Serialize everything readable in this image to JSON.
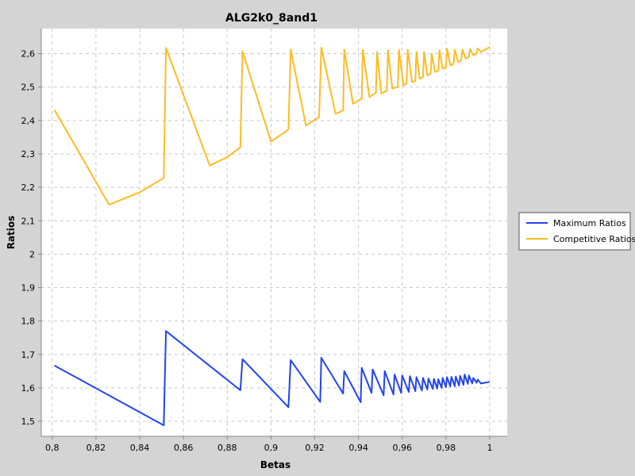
{
  "chart_data": {
    "type": "line",
    "title": "ALG2k0_8and1",
    "xlabel": "Betas",
    "ylabel": "Ratios",
    "xlim": [
      0.795,
      1.008
    ],
    "ylim": [
      1.455,
      2.675
    ],
    "x_ticks": [
      "0,8",
      "0,82",
      "0,84",
      "0,86",
      "0,88",
      "0,9",
      "0,92",
      "0,94",
      "0,96",
      "0,98",
      "1"
    ],
    "x_tick_values": [
      0.8,
      0.82,
      0.84,
      0.86,
      0.88,
      0.9,
      0.92,
      0.94,
      0.96,
      0.98,
      1.0
    ],
    "y_ticks": [
      "1,5",
      "1,6",
      "1,7",
      "1,8",
      "1,9",
      "2",
      "2,1",
      "2,2",
      "2,3",
      "2,4",
      "2,5",
      "2,6"
    ],
    "y_tick_values": [
      1.5,
      1.6,
      1.7,
      1.8,
      1.9,
      2.0,
      2.1,
      2.2,
      2.3,
      2.4,
      2.5,
      2.6
    ],
    "grid": true,
    "legend_position": "right",
    "series": [
      {
        "name": "Maximum Ratios",
        "color": "#2244ee",
        "points": [
          [
            0.801,
            1.667
          ],
          [
            0.851,
            1.488
          ],
          [
            0.852,
            1.77
          ],
          [
            0.886,
            1.593
          ],
          [
            0.887,
            1.686
          ],
          [
            0.908,
            1.542
          ],
          [
            0.909,
            1.683
          ],
          [
            0.9225,
            1.558
          ],
          [
            0.923,
            1.69
          ],
          [
            0.933,
            1.583
          ],
          [
            0.9335,
            1.65
          ],
          [
            0.941,
            1.557
          ],
          [
            0.9415,
            1.66
          ],
          [
            0.946,
            1.585
          ],
          [
            0.9465,
            1.655
          ],
          [
            0.9515,
            1.578
          ],
          [
            0.952,
            1.65
          ],
          [
            0.956,
            1.58
          ],
          [
            0.9565,
            1.64
          ],
          [
            0.9595,
            1.585
          ],
          [
            0.96,
            1.637
          ],
          [
            0.963,
            1.588
          ],
          [
            0.9635,
            1.635
          ],
          [
            0.966,
            1.59
          ],
          [
            0.9665,
            1.632
          ],
          [
            0.969,
            1.592
          ],
          [
            0.9695,
            1.63
          ],
          [
            0.9715,
            1.595
          ],
          [
            0.972,
            1.628
          ],
          [
            0.974,
            1.597
          ],
          [
            0.9745,
            1.627
          ],
          [
            0.976,
            1.598
          ],
          [
            0.9765,
            1.626
          ],
          [
            0.978,
            1.6
          ],
          [
            0.9785,
            1.63
          ],
          [
            0.98,
            1.602
          ],
          [
            0.9805,
            1.632
          ],
          [
            0.982,
            1.604
          ],
          [
            0.9825,
            1.633
          ],
          [
            0.984,
            1.605
          ],
          [
            0.9845,
            1.634
          ],
          [
            0.986,
            1.607
          ],
          [
            0.9865,
            1.636
          ],
          [
            0.988,
            1.609
          ],
          [
            0.9885,
            1.64
          ],
          [
            0.99,
            1.612
          ],
          [
            0.9905,
            1.637
          ],
          [
            0.992,
            1.613
          ],
          [
            0.9925,
            1.63
          ],
          [
            0.994,
            1.615
          ],
          [
            0.9945,
            1.625
          ],
          [
            0.996,
            1.613
          ],
          [
            1.0,
            1.618
          ]
        ]
      },
      {
        "name": "Competitive Ratios",
        "color": "#ffbb22",
        "points": [
          [
            0.801,
            2.432
          ],
          [
            0.826,
            2.148
          ],
          [
            0.84,
            2.185
          ],
          [
            0.851,
            2.228
          ],
          [
            0.852,
            2.617
          ],
          [
            0.872,
            2.265
          ],
          [
            0.88,
            2.29
          ],
          [
            0.886,
            2.32
          ],
          [
            0.887,
            2.607
          ],
          [
            0.9,
            2.337
          ],
          [
            0.907,
            2.368
          ],
          [
            0.908,
            2.375
          ],
          [
            0.909,
            2.612
          ],
          [
            0.916,
            2.385
          ],
          [
            0.922,
            2.41
          ],
          [
            0.923,
            2.618
          ],
          [
            0.9295,
            2.42
          ],
          [
            0.933,
            2.43
          ],
          [
            0.9335,
            2.612
          ],
          [
            0.9375,
            2.45
          ],
          [
            0.9415,
            2.465
          ],
          [
            0.942,
            2.612
          ],
          [
            0.945,
            2.47
          ],
          [
            0.948,
            2.483
          ],
          [
            0.9485,
            2.605
          ],
          [
            0.9505,
            2.48
          ],
          [
            0.953,
            2.49
          ],
          [
            0.9535,
            2.61
          ],
          [
            0.9555,
            2.495
          ],
          [
            0.958,
            2.5
          ],
          [
            0.9585,
            2.612
          ],
          [
            0.9605,
            2.505
          ],
          [
            0.962,
            2.51
          ],
          [
            0.9625,
            2.612
          ],
          [
            0.9645,
            2.515
          ],
          [
            0.966,
            2.518
          ],
          [
            0.9665,
            2.605
          ],
          [
            0.968,
            2.525
          ],
          [
            0.9695,
            2.53
          ],
          [
            0.97,
            2.605
          ],
          [
            0.9715,
            2.535
          ],
          [
            0.973,
            2.54
          ],
          [
            0.9735,
            2.6
          ],
          [
            0.975,
            2.545
          ],
          [
            0.9765,
            2.55
          ],
          [
            0.977,
            2.61
          ],
          [
            0.9785,
            2.555
          ],
          [
            0.98,
            2.56
          ],
          [
            0.9805,
            2.615
          ],
          [
            0.982,
            2.565
          ],
          [
            0.9835,
            2.57
          ],
          [
            0.984,
            2.612
          ],
          [
            0.9855,
            2.575
          ],
          [
            0.987,
            2.58
          ],
          [
            0.9875,
            2.612
          ],
          [
            0.989,
            2.585
          ],
          [
            0.9905,
            2.59
          ],
          [
            0.991,
            2.614
          ],
          [
            0.9925,
            2.595
          ],
          [
            0.994,
            2.6
          ],
          [
            0.9945,
            2.616
          ],
          [
            0.996,
            2.605
          ],
          [
            0.998,
            2.612
          ],
          [
            1.0,
            2.62
          ]
        ]
      }
    ]
  }
}
